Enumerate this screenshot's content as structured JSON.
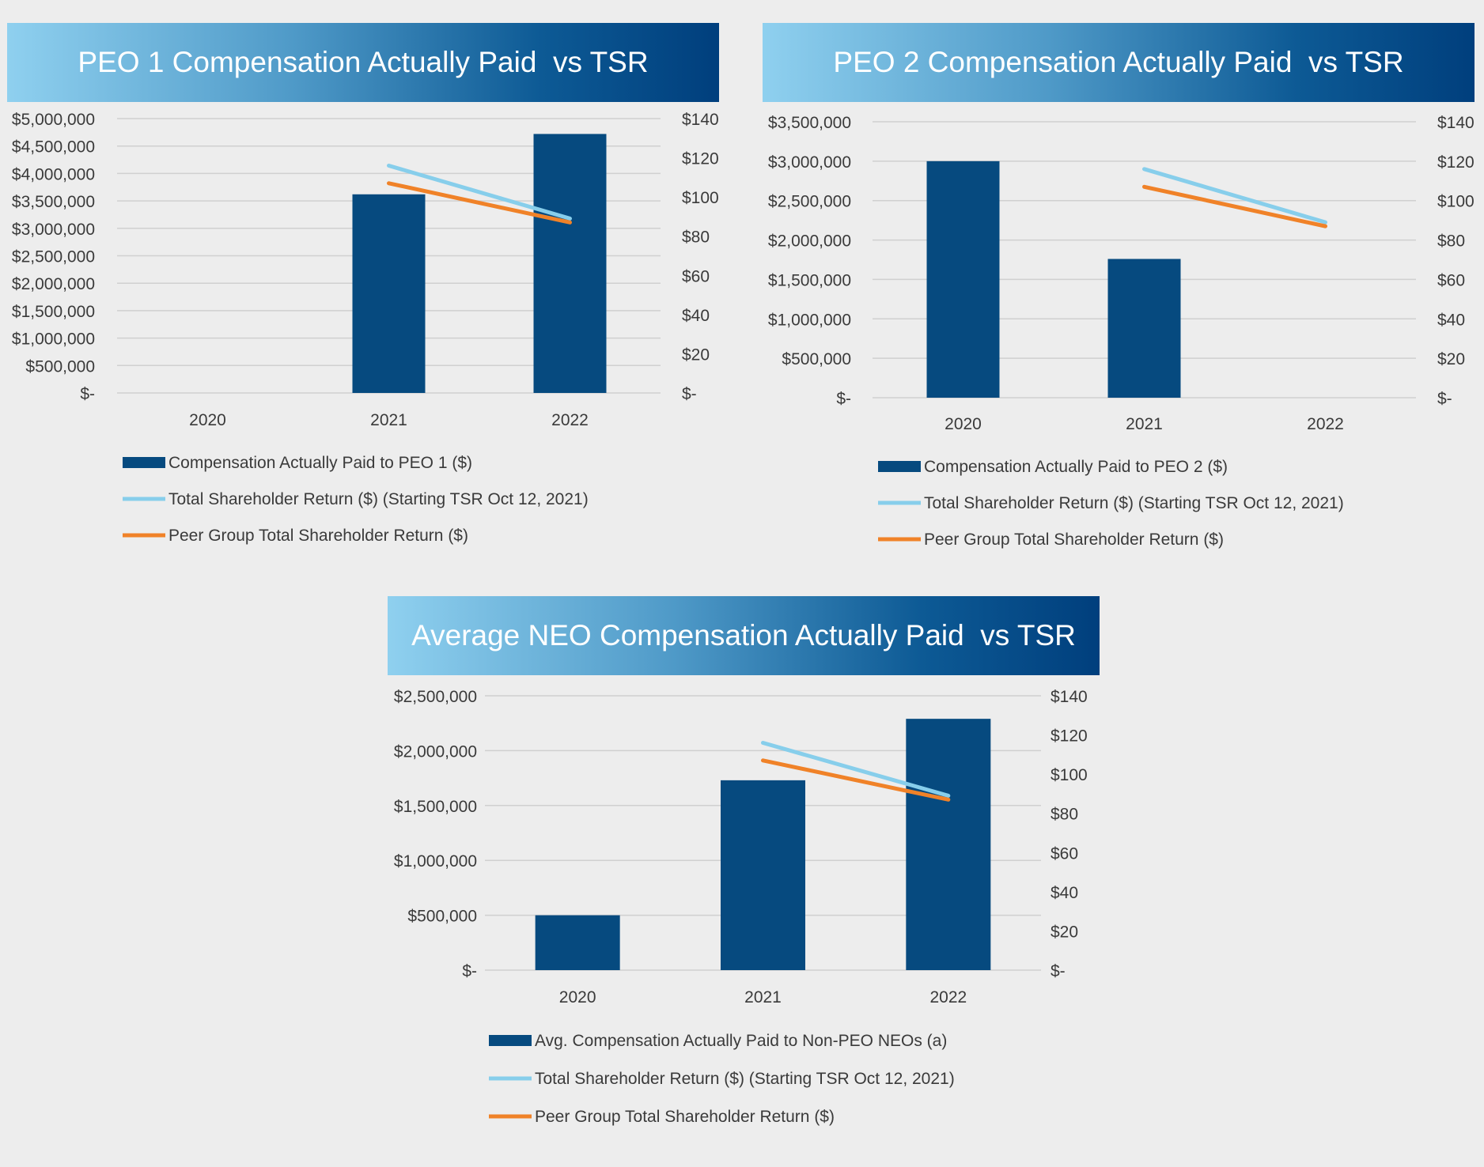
{
  "colors": {
    "bar": "#064a7f",
    "tsr": "#87ceeb",
    "peer": "#f08228",
    "grid": "#d0d0d0",
    "banner_start": "#8fd0ef",
    "banner_end": "#003f7d"
  },
  "chart_data": [
    {
      "type": "bar",
      "title": "PEO 1 Compensation Actually Paid  vs TSR",
      "categories": [
        "2020",
        "2021",
        "2022"
      ],
      "series": [
        {
          "name": "Compensation Actually Paid to PEO 1 ($)",
          "type": "bar",
          "axis": "left",
          "values": [
            null,
            3620000,
            4720000
          ]
        },
        {
          "name": "Total Shareholder Return ($) (Starting TSR Oct 12, 2021)",
          "type": "line",
          "axis": "right",
          "values": [
            null,
            116,
            89
          ]
        },
        {
          "name": "Peer Group Total Shareholder Return ($)",
          "type": "line",
          "axis": "right",
          "values": [
            null,
            107,
            87
          ]
        }
      ],
      "y_left": {
        "ylim": [
          0,
          5000000
        ],
        "ticks": [
          "$5,000,000",
          "$4,500,000",
          "$4,000,000",
          "$3,500,000",
          "$3,000,000",
          "$2,500,000",
          "$2,000,000",
          "$1,500,000",
          "$1,000,000",
          "$500,000",
          "$-"
        ]
      },
      "y_right": {
        "ylim": [
          0,
          140
        ],
        "ticks": [
          "$140",
          "$120",
          "$100",
          "$80",
          "$60",
          "$40",
          "$20",
          "$-"
        ]
      },
      "legend": [
        "Compensation Actually Paid to PEO 1 ($)",
        "Total Shareholder Return ($) (Starting TSR Oct 12, 2021)",
        "Peer Group Total Shareholder Return ($)"
      ],
      "grid": true
    },
    {
      "type": "bar",
      "title": "PEO 2 Compensation Actually Paid  vs TSR",
      "categories": [
        "2020",
        "2021",
        "2022"
      ],
      "series": [
        {
          "name": "Compensation Actually Paid to PEO 2 ($)",
          "type": "bar",
          "axis": "left",
          "values": [
            3000000,
            1760000,
            null
          ]
        },
        {
          "name": "Total Shareholder Return ($) (Starting TSR Oct 12, 2021)",
          "type": "line",
          "axis": "right",
          "values": [
            null,
            116,
            89
          ]
        },
        {
          "name": "Peer Group Total Shareholder Return ($)",
          "type": "line",
          "axis": "right",
          "values": [
            null,
            107,
            87
          ]
        }
      ],
      "y_left": {
        "ylim": [
          0,
          3500000
        ],
        "ticks": [
          "$3,500,000",
          "$3,000,000",
          "$2,500,000",
          "$2,000,000",
          "$1,500,000",
          "$1,000,000",
          "$500,000",
          "$-"
        ]
      },
      "y_right": {
        "ylim": [
          0,
          140
        ],
        "ticks": [
          "$140",
          "$120",
          "$100",
          "$80",
          "$60",
          "$40",
          "$20",
          "$-"
        ]
      },
      "legend": [
        "Compensation Actually Paid to PEO 2 ($)",
        "Total Shareholder Return ($) (Starting TSR Oct 12, 2021)",
        "Peer Group Total Shareholder Return ($)"
      ],
      "grid": true
    },
    {
      "type": "bar",
      "title": "Average NEO Compensation Actually Paid  vs TSR",
      "categories": [
        "2020",
        "2021",
        "2022"
      ],
      "series": [
        {
          "name": "Avg. Compensation Actually Paid to Non-PEO NEOs (a)",
          "type": "bar",
          "axis": "left",
          "values": [
            500000,
            1730000,
            2290000
          ]
        },
        {
          "name": "Total Shareholder Return ($) (Starting TSR Oct 12, 2021)",
          "type": "line",
          "axis": "right",
          "values": [
            null,
            116,
            89
          ]
        },
        {
          "name": "Peer Group Total Shareholder Return ($)",
          "type": "line",
          "axis": "right",
          "values": [
            null,
            107,
            87
          ]
        }
      ],
      "y_left": {
        "ylim": [
          0,
          2500000
        ],
        "ticks": [
          "$2,500,000",
          "$2,000,000",
          "$1,500,000",
          "$1,000,000",
          "$500,000",
          "$-"
        ]
      },
      "y_right": {
        "ylim": [
          0,
          140
        ],
        "ticks": [
          "$140",
          "$120",
          "$100",
          "$80",
          "$60",
          "$40",
          "$20",
          "$-"
        ]
      },
      "legend": [
        "Avg. Compensation Actually Paid to Non-PEO NEOs (a)",
        "Total Shareholder Return ($) (Starting TSR Oct 12, 2021)",
        "Peer Group Total Shareholder Return ($)"
      ],
      "grid": true
    }
  ]
}
